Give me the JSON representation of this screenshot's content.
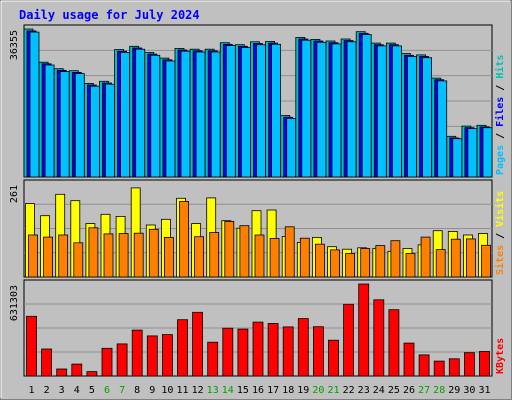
{
  "chart_data": {
    "type": "bar",
    "title": "Daily usage for July 2024",
    "categories": [
      "1",
      "2",
      "3",
      "4",
      "5",
      "6",
      "7",
      "8",
      "9",
      "10",
      "11",
      "12",
      "13",
      "14",
      "15",
      "16",
      "17",
      "18",
      "19",
      "20",
      "21",
      "22",
      "23",
      "24",
      "25",
      "26",
      "27",
      "28",
      "29",
      "30",
      "31"
    ],
    "weekend_days": [
      "6",
      "7",
      "13",
      "14",
      "20",
      "21",
      "27",
      "28"
    ],
    "panels": [
      {
        "key": "top",
        "ymax_label": "36355",
        "ymax": 36355,
        "series": [
          {
            "name": "Hits",
            "color": "#00c0c0",
            "values": [
              36355,
              28200,
              26600,
              26100,
              23000,
              23500,
              31300,
              32100,
              30600,
              29200,
              31600,
              31400,
              31400,
              33000,
              32500,
              33200,
              33300,
              15100,
              34300,
              33800,
              33400,
              33900,
              35700,
              32900,
              32900,
              30300,
              30000,
              24300,
              10000,
              12500,
              12700
            ]
          },
          {
            "name": "Files",
            "color": "#0000ff",
            "values": [
              35900,
              27800,
              26200,
              25700,
              22600,
              23100,
              30900,
              31700,
              30200,
              28800,
              31200,
              31000,
              31000,
              32600,
              32100,
              32800,
              32900,
              14700,
              33900,
              33400,
              33000,
              33500,
              35300,
              32500,
              32500,
              29900,
              29600,
              23900,
              9600,
              12100,
              12300
            ]
          },
          {
            "name": "Pages",
            "color": "#00c0ff",
            "values": [
              35600,
              27500,
              25900,
              25400,
              22300,
              22800,
              30600,
              31400,
              29900,
              28500,
              30900,
              30700,
              30700,
              32300,
              31800,
              32500,
              32600,
              14400,
              33600,
              33100,
              32700,
              33200,
              35000,
              32200,
              32200,
              29600,
              29300,
              23600,
              9400,
              11900,
              12100
            ]
          }
        ]
      },
      {
        "key": "mid",
        "ymax_label": "261",
        "ymax": 261,
        "series": [
          {
            "name": "Visits",
            "color": "#ffff00",
            "values": [
              206,
              172,
              232,
              214,
              150,
              176,
              170,
              250,
              146,
              162,
              221,
              150,
              222,
              158,
              137,
              186,
              188,
              114,
              97,
              111,
              85,
              78,
              82,
              80,
              72,
              80,
              90,
              130,
              128,
              118,
              122
            ]
          },
          {
            "name": "Sites",
            "color": "#ff8000",
            "values": [
              118,
              112,
              118,
              96,
              138,
              121,
              122,
              123,
              134,
              111,
              212,
              113,
              125,
              156,
              144,
              118,
              108,
              141,
              109,
              92,
              76,
              66,
              80,
              88,
              102,
              66,
              112,
              77,
              106,
              107,
              89
            ]
          }
        ]
      },
      {
        "key": "bottom",
        "ymax_label": "631303",
        "ymax": 631303,
        "series": [
          {
            "name": "KBytes",
            "color": "#ff0000",
            "values": [
              410000,
              185000,
              48000,
              82000,
              30000,
              190000,
              220000,
              315000,
              275000,
              284000,
              386000,
              437000,
              232000,
              328000,
              322000,
              370000,
              360000,
              337000,
              394000,
              338000,
              246000,
              492000,
              631303,
              523000,
              455000,
              226000,
              145000,
              102000,
              118000,
              160000,
              168000
            ]
          }
        ]
      }
    ],
    "legend_text": {
      "slash": " / "
    }
  },
  "colors": {
    "plot_bg": "#c0c0c0",
    "frame": "#c0c0c0",
    "title": "#0000ff",
    "weekday_label": "#000000",
    "weekend_label": "#00a000"
  }
}
